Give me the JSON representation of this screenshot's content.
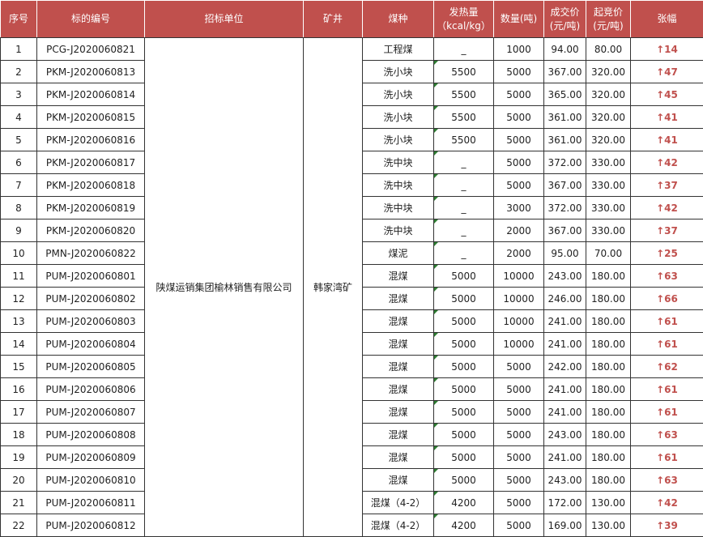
{
  "colors": {
    "header_bg": "#c0504d",
    "change_text": "#c0504d"
  },
  "headers": [
    "序号",
    "标的编号",
    "招标单位",
    "矿井",
    "煤种",
    "发热量（kcal/kg）",
    "数量(吨)",
    "成交价(元/吨)",
    "起竞价(元/吨)",
    "张幅"
  ],
  "bidder": "陕煤运销集团榆林销售有限公司",
  "mine": "韩家湾矿",
  "up_arrow": "↑",
  "rows": [
    {
      "no": "1",
      "code": "PCG-J2020060821",
      "type": "工程煤",
      "heat": "_",
      "qty": "1000",
      "deal": "94.00",
      "start": "80.00",
      "change": "14"
    },
    {
      "no": "2",
      "code": "PKM-J2020060813",
      "type": "洗小块",
      "heat": "5500",
      "qty": "5000",
      "deal": "367.00",
      "start": "320.00",
      "change": "47"
    },
    {
      "no": "3",
      "code": "PKM-J2020060814",
      "type": "洗小块",
      "heat": "5500",
      "qty": "5000",
      "deal": "365.00",
      "start": "320.00",
      "change": "45"
    },
    {
      "no": "4",
      "code": "PKM-J2020060815",
      "type": "洗小块",
      "heat": "5500",
      "qty": "5000",
      "deal": "361.00",
      "start": "320.00",
      "change": "41"
    },
    {
      "no": "5",
      "code": "PKM-J2020060816",
      "type": "洗小块",
      "heat": "5500",
      "qty": "5000",
      "deal": "361.00",
      "start": "320.00",
      "change": "41"
    },
    {
      "no": "6",
      "code": "PKM-J2020060817",
      "type": "洗中块",
      "heat": "_",
      "qty": "5000",
      "deal": "372.00",
      "start": "330.00",
      "change": "42"
    },
    {
      "no": "7",
      "code": "PKM-J2020060818",
      "type": "洗中块",
      "heat": "_",
      "qty": "5000",
      "deal": "367.00",
      "start": "330.00",
      "change": "37"
    },
    {
      "no": "8",
      "code": "PKM-J2020060819",
      "type": "洗中块",
      "heat": "_",
      "qty": "3000",
      "deal": "372.00",
      "start": "330.00",
      "change": "42"
    },
    {
      "no": "9",
      "code": "PKM-J2020060820",
      "type": "洗中块",
      "heat": "_",
      "qty": "2000",
      "deal": "367.00",
      "start": "330.00",
      "change": "37"
    },
    {
      "no": "10",
      "code": "PMN-J2020060822",
      "type": "煤泥",
      "heat": "_",
      "qty": "2000",
      "deal": "95.00",
      "start": "70.00",
      "change": "25"
    },
    {
      "no": "11",
      "code": "PUM-J2020060801",
      "type": "混煤",
      "heat": "5000",
      "qty": "10000",
      "deal": "243.00",
      "start": "180.00",
      "change": "63"
    },
    {
      "no": "12",
      "code": "PUM-J2020060802",
      "type": "混煤",
      "heat": "5000",
      "qty": "10000",
      "deal": "246.00",
      "start": "180.00",
      "change": "66"
    },
    {
      "no": "13",
      "code": "PUM-J2020060803",
      "type": "混煤",
      "heat": "5000",
      "qty": "10000",
      "deal": "241.00",
      "start": "180.00",
      "change": "61"
    },
    {
      "no": "14",
      "code": "PUM-J2020060804",
      "type": "混煤",
      "heat": "5000",
      "qty": "10000",
      "deal": "241.00",
      "start": "180.00",
      "change": "61"
    },
    {
      "no": "15",
      "code": "PUM-J2020060805",
      "type": "混煤",
      "heat": "5000",
      "qty": "5000",
      "deal": "242.00",
      "start": "180.00",
      "change": "62"
    },
    {
      "no": "16",
      "code": "PUM-J2020060806",
      "type": "混煤",
      "heat": "5000",
      "qty": "5000",
      "deal": "241.00",
      "start": "180.00",
      "change": "61"
    },
    {
      "no": "17",
      "code": "PUM-J2020060807",
      "type": "混煤",
      "heat": "5000",
      "qty": "5000",
      "deal": "241.00",
      "start": "180.00",
      "change": "61"
    },
    {
      "no": "18",
      "code": "PUM-J2020060808",
      "type": "混煤",
      "heat": "5000",
      "qty": "5000",
      "deal": "243.00",
      "start": "180.00",
      "change": "63"
    },
    {
      "no": "19",
      "code": "PUM-J2020060809",
      "type": "混煤",
      "heat": "5000",
      "qty": "5000",
      "deal": "241.00",
      "start": "180.00",
      "change": "61"
    },
    {
      "no": "20",
      "code": "PUM-J2020060810",
      "type": "混煤",
      "heat": "5000",
      "qty": "5000",
      "deal": "243.00",
      "start": "180.00",
      "change": "63"
    },
    {
      "no": "21",
      "code": "PUM-J2020060811",
      "type": "混煤（4-2）",
      "heat": "4200",
      "qty": "5000",
      "deal": "172.00",
      "start": "130.00",
      "change": "42"
    },
    {
      "no": "22",
      "code": "PUM-J2020060812",
      "type": "混煤（4-2）",
      "heat": "4200",
      "qty": "5000",
      "deal": "169.00",
      "start": "130.00",
      "change": "39"
    }
  ]
}
